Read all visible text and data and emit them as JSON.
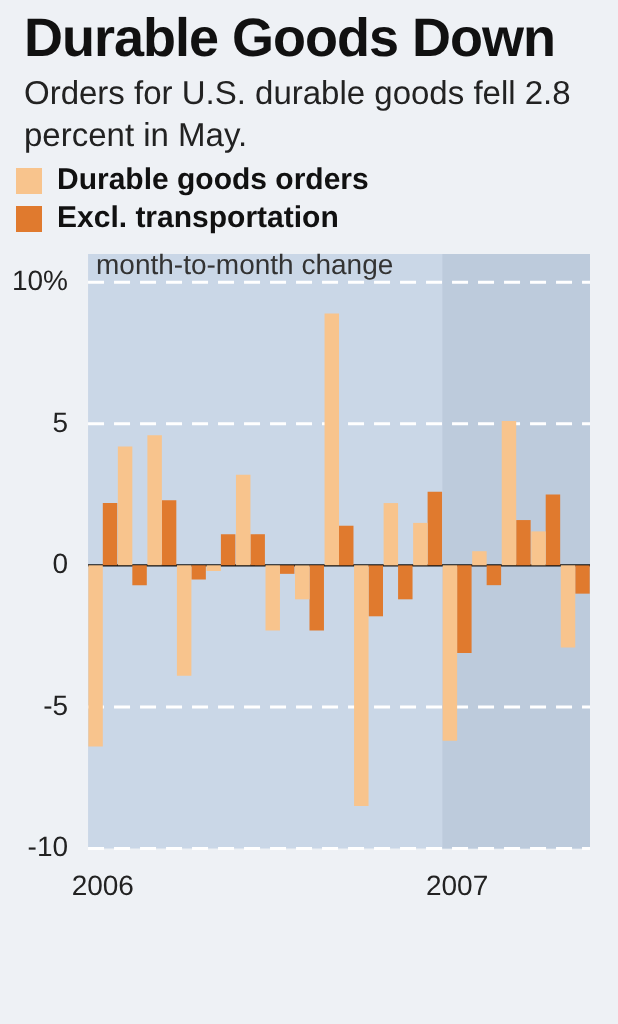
{
  "chart_data": {
    "type": "bar",
    "title": "Durable Goods Down",
    "subtitle": "Orders for U.S. durable goods fell 2.8 percent in May.",
    "ylabel": "month-to-month change",
    "x": [
      "2006-01",
      "2006-02",
      "2006-03",
      "2006-04",
      "2006-05",
      "2006-06",
      "2006-07",
      "2006-08",
      "2006-09",
      "2006-10",
      "2006-11",
      "2006-12",
      "2007-01",
      "2007-02",
      "2007-03",
      "2007-04",
      "2007-05"
    ],
    "series": [
      {
        "name": "Durable goods orders",
        "color": "#f8c48d",
        "values": [
          -6.4,
          4.2,
          4.6,
          -3.9,
          -0.2,
          3.2,
          -2.3,
          -1.2,
          8.9,
          -8.5,
          2.2,
          1.5,
          -6.2,
          0.5,
          5.1,
          1.2,
          -2.9
        ]
      },
      {
        "name": "Excl. transportation",
        "color": "#e07a2e",
        "values": [
          2.2,
          -0.7,
          2.3,
          -0.5,
          1.1,
          1.1,
          -0.3,
          -2.3,
          1.4,
          -1.8,
          -1.2,
          2.6,
          -3.1,
          -0.7,
          1.6,
          2.5,
          -1.0
        ]
      }
    ],
    "xlim": [
      "2005-12-16",
      "2007-05-16"
    ],
    "xticks": [
      {
        "value": "2006-01",
        "label": "2006"
      },
      {
        "value": "2007-01",
        "label": "2007"
      }
    ],
    "ylim": [
      -10,
      11
    ],
    "yticks": [
      -10,
      -5,
      0,
      5,
      {
        "value": 10,
        "label": "10%"
      }
    ],
    "bands": [
      {
        "axis": "x",
        "from": "2006-12-16",
        "to": "2007-05-16",
        "color": "#bdcbdc"
      }
    ],
    "grid": "y",
    "legend": "top left"
  }
}
